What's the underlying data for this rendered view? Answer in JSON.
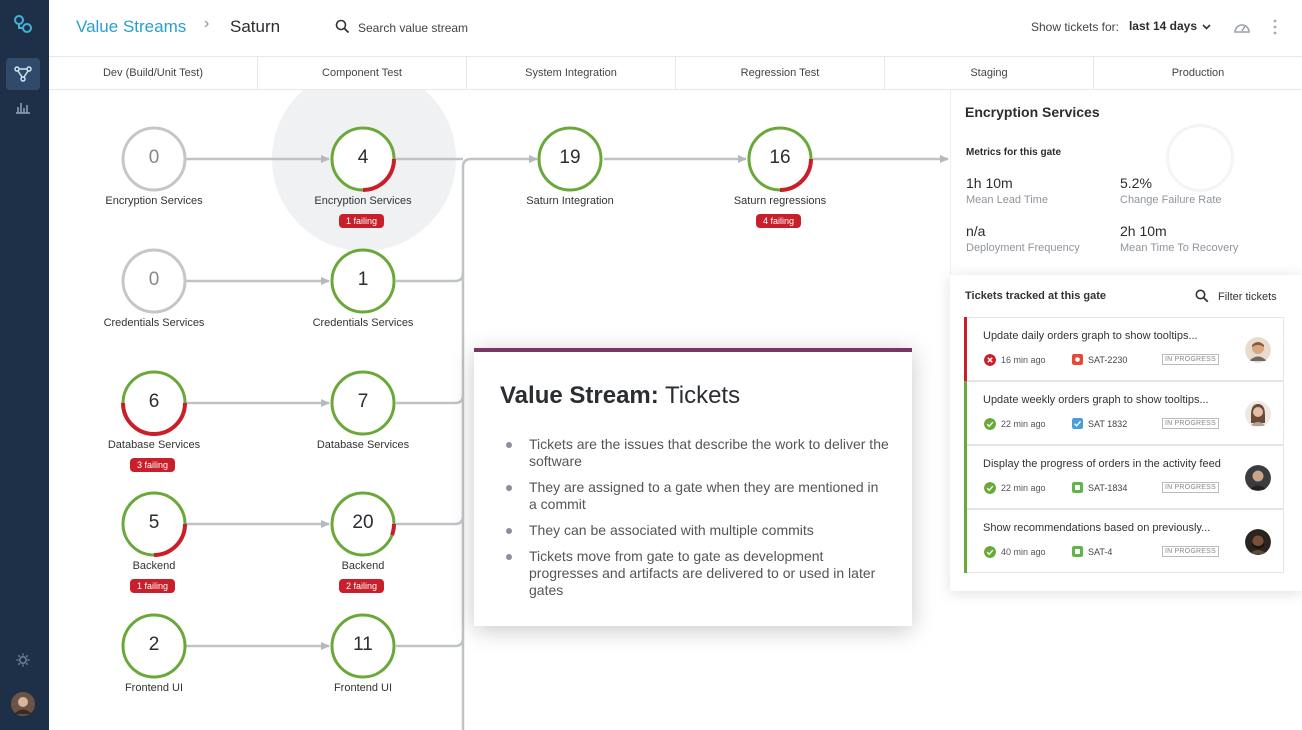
{
  "header": {
    "breadcrumb_root": "Value Streams",
    "breadcrumb_separator": "›",
    "breadcrumb_current": "Saturn",
    "search_placeholder": "Search value stream",
    "show_tickets_label": "Show tickets for:",
    "range_value": "last 14 days"
  },
  "stages": [
    "Dev (Build/Unit Test)",
    "Component Test",
    "System Integration",
    "Regression Test",
    "Staging",
    "Production"
  ],
  "nodes": {
    "dev_encryption": {
      "value": "0",
      "label": "Encryption Services"
    },
    "comp_encryption": {
      "value": "4",
      "label": "Encryption Services",
      "badge": "1 failing"
    },
    "sys_integration": {
      "value": "19",
      "label": "Saturn Integration"
    },
    "reg_regressions": {
      "value": "16",
      "label": "Saturn regressions",
      "badge": "4 failing"
    },
    "dev_credentials": {
      "value": "0",
      "label": "Credentials Services"
    },
    "comp_credentials": {
      "value": "1",
      "label": "Credentials Services"
    },
    "dev_database": {
      "value": "6",
      "label": "Database Services",
      "badge": "3 failing"
    },
    "comp_database": {
      "value": "7",
      "label": "Database Services"
    },
    "dev_backend": {
      "value": "5",
      "label": "Backend",
      "badge": "1 failing"
    },
    "comp_backend": {
      "value": "20",
      "label": "Backend",
      "badge": "2 failing"
    },
    "dev_frontend": {
      "value": "2",
      "label": "Frontend UI"
    },
    "comp_frontend": {
      "value": "11",
      "label": "Frontend UI"
    }
  },
  "gate": {
    "title": "Encryption Services",
    "metrics_title": "Metrics for this gate",
    "lead_time_value": "1h 10m",
    "lead_time_label": "Mean Lead Time",
    "failure_rate_value": "5.2%",
    "failure_rate_label": "Change Failure Rate",
    "deploy_freq_value": "n/a",
    "deploy_freq_label": "Deployment Frequency",
    "mttr_value": "2h 10m",
    "mttr_label": "Mean Time To Recovery"
  },
  "tickets": {
    "title": "Tickets tracked at this gate",
    "filter_label": "Filter tickets",
    "items": [
      {
        "title": "Update daily orders graph to show tooltips...",
        "time": "16 min ago",
        "id": "SAT-2230",
        "state": "IN PROGRESS",
        "status": "failed"
      },
      {
        "title": "Update weekly orders graph to show tooltips...",
        "time": "22 min ago",
        "id": "SAT 1832",
        "state": "IN PROGRESS",
        "status": "passed"
      },
      {
        "title": "Display the progress of orders in the activity feed",
        "time": "22 min ago",
        "id": "SAT-1834",
        "state": "IN PROGRESS",
        "status": "passed"
      },
      {
        "title": "Show recommendations based on previously...",
        "time": "40 min ago",
        "id": "SAT-4",
        "state": "IN PROGRESS",
        "status": "passed"
      }
    ]
  },
  "overlay": {
    "heading_bold": "Value Stream:",
    "heading_rest": " Tickets",
    "bullets": [
      "Tickets are the issues that describe the work to deliver the software",
      "They are assigned to a gate when they are mentioned in a commit",
      "They can be associated with multiple commits",
      "Tickets move from gate to gate as development progresses and artifacts are delivered to or used in later gates"
    ]
  },
  "colors": {
    "nav_bg": "#1e3048",
    "accent": "#2aa0c8",
    "passing": "#6aa83a",
    "failing": "#c81f2b",
    "idle": "#c4c6c9",
    "overlay_border": "#7a3466"
  }
}
